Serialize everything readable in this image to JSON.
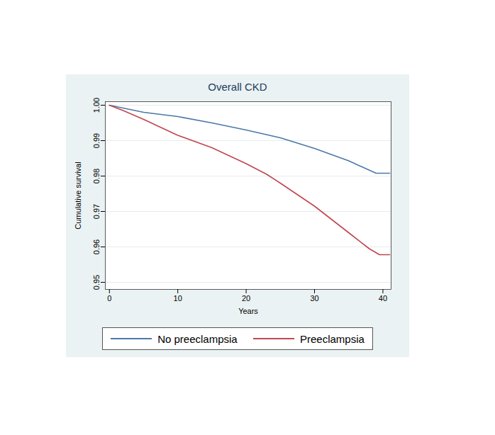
{
  "chart_data": {
    "type": "line",
    "title": "Overall CKD",
    "x_label": "Years",
    "y_label": "Cumulative survival",
    "xlim": [
      -0.6,
      41.2
    ],
    "xticks": [
      0,
      10,
      20,
      30,
      40
    ],
    "ylim": [
      0.948,
      1.001
    ],
    "yticks": [
      0.95,
      0.96,
      0.97,
      0.98,
      0.99,
      {
        "value": 1,
        "label": "1.00"
      }
    ],
    "grid": true,
    "legend": "bottom",
    "series": [
      {
        "name": "No preeclampsia",
        "color": "#4a78a8",
        "x": [
          0,
          5,
          10,
          15,
          20,
          25,
          30,
          35,
          39,
          41
        ],
        "values": [
          1.0,
          0.998,
          0.9968,
          0.995,
          0.993,
          0.9908,
          0.9878,
          0.9843,
          0.9808,
          0.9808
        ]
      },
      {
        "name": "Preeclampsia",
        "color": "#c0474f",
        "x": [
          0,
          2,
          5,
          10,
          15,
          20,
          23,
          25,
          30,
          35,
          38,
          39.5,
          41
        ],
        "values": [
          1.0,
          0.9985,
          0.996,
          0.9915,
          0.988,
          0.9835,
          0.9805,
          0.978,
          0.9715,
          0.964,
          0.9595,
          0.9578,
          0.9578
        ]
      }
    ]
  }
}
